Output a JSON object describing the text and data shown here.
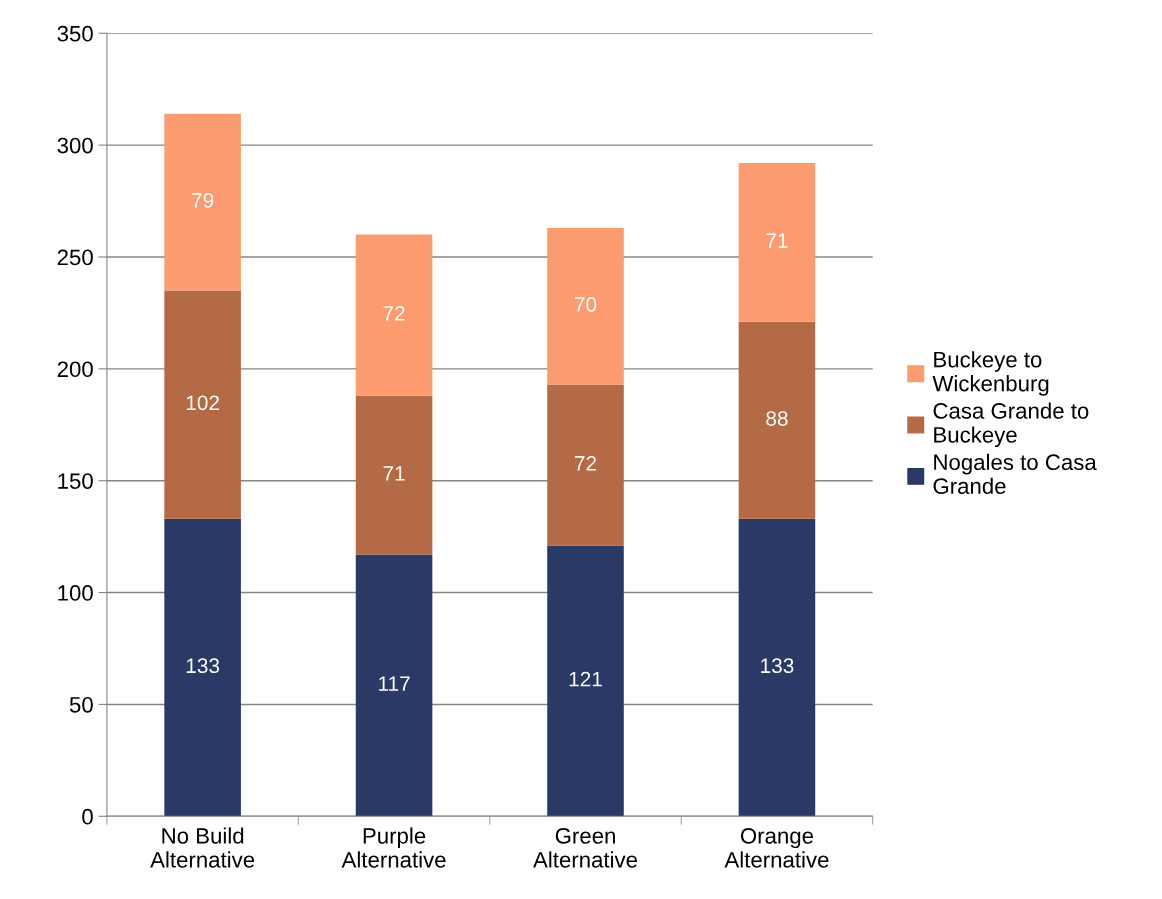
{
  "chart_data": {
    "type": "bar",
    "stacked": true,
    "categories": [
      "No Build Alternative",
      "Purple Alternative",
      "Green Alternative",
      "Orange Alternative"
    ],
    "series": [
      {
        "name": "Nogales to Casa Grande",
        "color": "#2b3966",
        "values": [
          133,
          117,
          121,
          133
        ]
      },
      {
        "name": "Casa Grande to Buckeye",
        "color": "#b46a45",
        "values": [
          102,
          71,
          72,
          88
        ]
      },
      {
        "name": "Buckeye to Wickenburg",
        "color": "#fb9b6f",
        "values": [
          79,
          72,
          70,
          71
        ]
      }
    ],
    "ylim": [
      0,
      350
    ],
    "yticks": [
      0,
      50,
      100,
      150,
      200,
      250,
      300,
      350
    ],
    "grid": "y",
    "legend": "right",
    "data_labels": true
  }
}
